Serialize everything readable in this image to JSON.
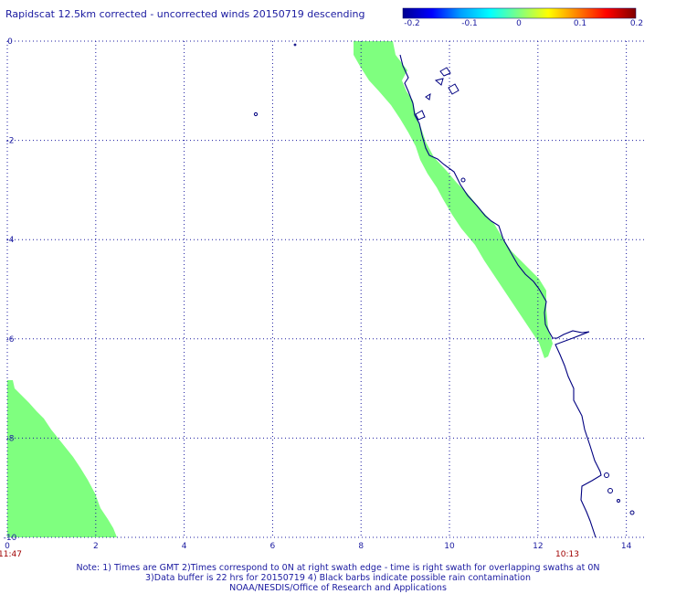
{
  "title": "Rapidscat 12.5km corrected - uncorrected winds 20150719 descending",
  "colorbar": {
    "ticks": [
      "-0.2",
      "-0.1",
      "0",
      "0.1",
      "0.2"
    ],
    "gradient_colors": [
      "#000090",
      "#0000ff",
      "#00a0ff",
      "#00ffff",
      "#80ff80",
      "#ffff00",
      "#ff8000",
      "#ff0000",
      "#800000"
    ]
  },
  "map": {
    "x_ticks": [
      "0",
      "2",
      "4",
      "6",
      "8",
      "10",
      "12",
      "14"
    ],
    "y_ticks": [
      "0",
      "-2",
      "-4",
      "-6",
      "-8",
      "-10"
    ],
    "x_range": [
      0,
      14.4
    ],
    "y_range": [
      -10,
      0
    ],
    "grid": "dotted",
    "swath_color": "#7fff7f",
    "coast_color": "#000080",
    "time_left": "11:47",
    "time_right": "10:13",
    "time_color": "#a00000"
  },
  "notes": {
    "line1": "Note: 1) Times are GMT 2)Times correspond to 0N at right swath edge - time is right swath for overlapping swaths at 0N",
    "line2": "3)Data buffer is 22 hrs for 20150719 4) Black barbs indicate possible rain contamination",
    "line3": "NOAA/NESDIS/Office of Research and Applications"
  }
}
